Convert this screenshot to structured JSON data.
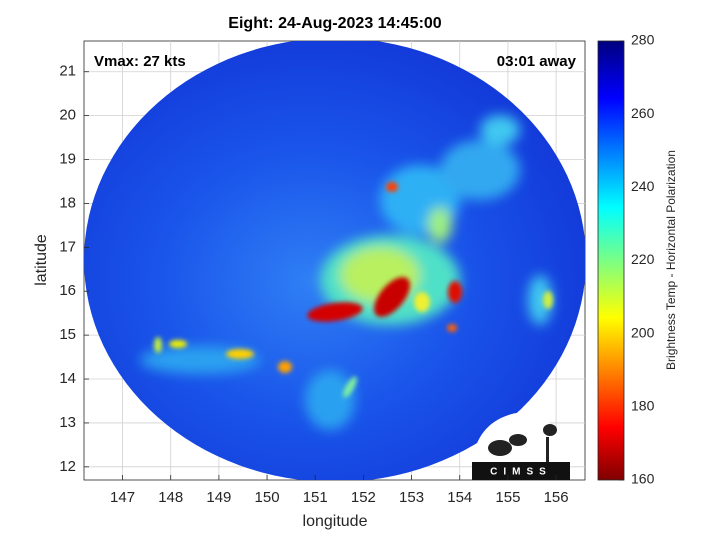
{
  "chart_data": {
    "type": "map",
    "title": "Eight: 24-Aug-2023 14:45:00",
    "xlabel": "longitude",
    "ylabel": "latitude",
    "xlim": [
      146.2,
      156.6
    ],
    "ylim": [
      11.7,
      21.7
    ],
    "xticks": [
      147,
      148,
      149,
      150,
      151,
      152,
      153,
      154,
      155,
      156
    ],
    "yticks": [
      12,
      13,
      14,
      15,
      16,
      17,
      18,
      19,
      20,
      21
    ],
    "grid": true,
    "annotations": [
      "Vmax: 27 kts",
      "03:01 away"
    ],
    "colorbar": {
      "label": "Brightness Temp - Horizontal Polarization",
      "lim": [
        160,
        280
      ],
      "ticks": [
        160,
        180,
        200,
        220,
        240,
        260,
        280
      ]
    },
    "logo": "CIMSS"
  }
}
